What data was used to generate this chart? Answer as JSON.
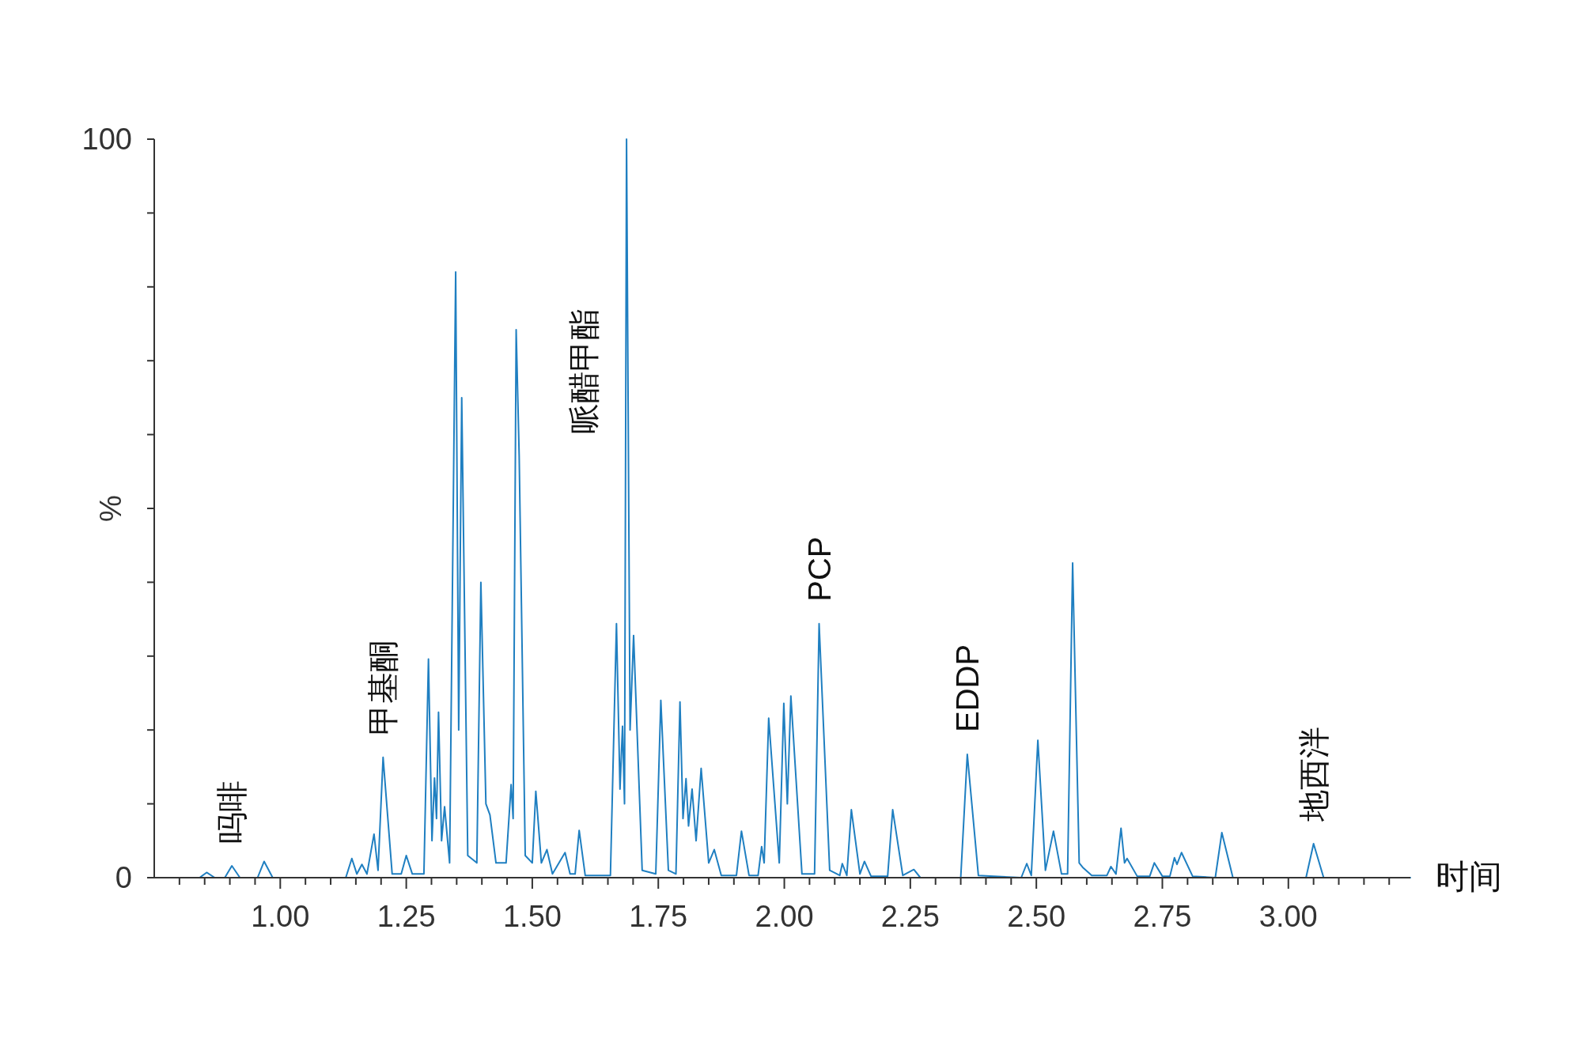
{
  "chart_data": {
    "type": "line",
    "xlabel": "时间",
    "ylabel": "%",
    "xlim": [
      0.75,
      3.242
    ],
    "ylim": [
      0,
      100
    ],
    "xticks": [
      {
        "value": 0.8,
        "label": null
      },
      {
        "value": 0.85,
        "label": null
      },
      {
        "value": 0.9,
        "label": null
      },
      {
        "value": 0.95,
        "label": null
      },
      {
        "value": 1,
        "label": "1.00"
      },
      {
        "value": 1.05,
        "label": null
      },
      {
        "value": 1.1,
        "label": null
      },
      {
        "value": 1.15,
        "label": null
      },
      {
        "value": 1.2,
        "label": null
      },
      {
        "value": 1.25,
        "label": "1.25"
      },
      {
        "value": 1.3,
        "label": null
      },
      {
        "value": 1.35,
        "label": null
      },
      {
        "value": 1.4,
        "label": null
      },
      {
        "value": 1.45,
        "label": null
      },
      {
        "value": 1.5,
        "label": "1.50"
      },
      {
        "value": 1.55,
        "label": null
      },
      {
        "value": 1.6,
        "label": null
      },
      {
        "value": 1.65,
        "label": null
      },
      {
        "value": 1.7,
        "label": null
      },
      {
        "value": 1.75,
        "label": "1.75"
      },
      {
        "value": 1.8,
        "label": null
      },
      {
        "value": 1.85,
        "label": null
      },
      {
        "value": 1.9,
        "label": null
      },
      {
        "value": 1.95,
        "label": null
      },
      {
        "value": 2,
        "label": "2.00"
      },
      {
        "value": 2.05,
        "label": null
      },
      {
        "value": 2.1,
        "label": null
      },
      {
        "value": 2.15,
        "label": null
      },
      {
        "value": 2.2,
        "label": null
      },
      {
        "value": 2.25,
        "label": "2.25"
      },
      {
        "value": 2.3,
        "label": null
      },
      {
        "value": 2.35,
        "label": null
      },
      {
        "value": 2.4,
        "label": null
      },
      {
        "value": 2.45,
        "label": null
      },
      {
        "value": 2.5,
        "label": "2.50"
      },
      {
        "value": 2.55,
        "label": null
      },
      {
        "value": 2.6,
        "label": null
      },
      {
        "value": 2.65,
        "label": null
      },
      {
        "value": 2.7,
        "label": null
      },
      {
        "value": 2.75,
        "label": "2.75"
      },
      {
        "value": 2.8,
        "label": null
      },
      {
        "value": 2.85,
        "label": null
      },
      {
        "value": 2.9,
        "label": null
      },
      {
        "value": 2.95,
        "label": null
      },
      {
        "value": 3,
        "label": "3.00"
      },
      {
        "value": 3.05,
        "label": null
      },
      {
        "value": 3.1,
        "label": null
      },
      {
        "value": 3.15,
        "label": null
      },
      {
        "value": 3.2,
        "label": null
      }
    ],
    "yticks": [
      0,
      {
        "value": 10,
        "label": null
      },
      {
        "value": 20,
        "label": null
      },
      {
        "value": 30,
        "label": null
      },
      {
        "value": 40,
        "label": null
      },
      {
        "value": 50,
        "label": null
      },
      {
        "value": 60,
        "label": null
      },
      {
        "value": 70,
        "label": null
      },
      {
        "value": 80,
        "label": null
      },
      {
        "value": 90,
        "label": null
      },
      100
    ],
    "grid": false,
    "marker": "none",
    "line_style": "solid",
    "series": [
      {
        "color": "#1f7fc1",
        "x": [
          0.75,
          0.84,
          0.854,
          0.87,
          0.89,
          0.904,
          0.92,
          0.955,
          0.968,
          0.985,
          1.13,
          1.142,
          1.152,
          1.162,
          1.172,
          1.186,
          1.194,
          1.204,
          1.222,
          1.24,
          1.25,
          1.262,
          1.285,
          1.294,
          1.301,
          1.306,
          1.31,
          1.314,
          1.32,
          1.326,
          1.336,
          1.348,
          1.354,
          1.36,
          1.372,
          1.39,
          1.398,
          1.408,
          1.416,
          1.428,
          1.448,
          1.458,
          1.462,
          1.468,
          1.474,
          1.486,
          1.5,
          1.507,
          1.518,
          1.529,
          1.54,
          1.565,
          1.575,
          1.585,
          1.593,
          1.605,
          1.655,
          1.667,
          1.674,
          1.679,
          1.683,
          1.687,
          1.694,
          1.701,
          1.718,
          1.745,
          1.755,
          1.77,
          1.785,
          1.793,
          1.799,
          1.805,
          1.81,
          1.817,
          1.825,
          1.835,
          1.85,
          1.861,
          1.875,
          1.905,
          1.915,
          1.93,
          1.948,
          1.955,
          1.96,
          1.969,
          1.99,
          1.999,
          2.006,
          2.013,
          2.035,
          2.06,
          2.069,
          2.09,
          2.11,
          2.115,
          2.124,
          2.133,
          2.15,
          2.159,
          2.172,
          2.205,
          2.215,
          2.235,
          2.257,
          2.27,
          2.35,
          2.363,
          2.385,
          2.47,
          2.481,
          2.49,
          2.503,
          2.518,
          2.534,
          2.55,
          2.562,
          2.572,
          2.585,
          2.592,
          2.61,
          2.64,
          2.648,
          2.658,
          2.668,
          2.675,
          2.68,
          2.7,
          2.725,
          2.734,
          2.75,
          2.765,
          2.774,
          2.779,
          2.788,
          2.81,
          2.855,
          2.868,
          2.89,
          3.035,
          3.05,
          3.07,
          3.242
        ],
        "values": [
          0,
          0,
          0.7,
          0,
          0,
          1.6,
          0,
          0,
          2.2,
          0,
          0,
          2.6,
          0.5,
          1.8,
          0.5,
          5.9,
          1,
          16.3,
          0.5,
          0.5,
          3,
          0.5,
          0.5,
          29.6,
          5,
          13.5,
          8,
          22.4,
          5,
          9.6,
          2,
          82,
          20,
          65,
          3,
          2,
          40,
          10,
          8.5,
          2,
          2,
          12.6,
          8,
          74.2,
          57.1,
          3,
          2,
          11.7,
          2,
          3.8,
          0.5,
          3.4,
          0.5,
          0.5,
          6.4,
          0.3,
          0.3,
          34.4,
          12,
          20.5,
          10,
          100,
          20,
          32.8,
          1,
          0.5,
          24,
          1,
          0.5,
          23.8,
          8,
          13.4,
          7,
          12,
          5,
          14.8,
          2,
          3.8,
          0.3,
          0.3,
          6.3,
          0.3,
          0.3,
          4.2,
          2,
          21.6,
          2,
          23.6,
          10,
          24.6,
          0.5,
          0.5,
          34.4,
          1,
          0.3,
          1.9,
          0.3,
          9.2,
          0.5,
          2.2,
          0.2,
          0.2,
          9.2,
          0.3,
          1.1,
          0,
          0,
          16.7,
          0.3,
          0,
          1.9,
          0.3,
          18.6,
          1,
          6.3,
          0.5,
          0.5,
          42.6,
          2,
          1.4,
          0.3,
          0.3,
          1.5,
          0.5,
          6.7,
          2,
          2.6,
          0.2,
          0.2,
          2,
          0.2,
          0.2,
          2.7,
          1.8,
          3.4,
          0.2,
          0,
          6.1,
          0,
          0,
          4.6,
          0,
          0
        ]
      }
    ],
    "annotations": [
      {
        "text": "吗啡",
        "x": 0.904,
        "y": 1.6
      },
      {
        "text": "甲基酮",
        "x": 1.204,
        "y": 16.3
      },
      "哌醋甲酯",
      {
        "text": "PCP",
        "x": 2.069,
        "y": 34.4
      },
      {
        "text": "EDDP",
        "x": 2.363,
        "y": 16.7
      },
      {
        "text": "地西泮",
        "x": 3.05,
        "y": 4.6
      }
    ]
  }
}
